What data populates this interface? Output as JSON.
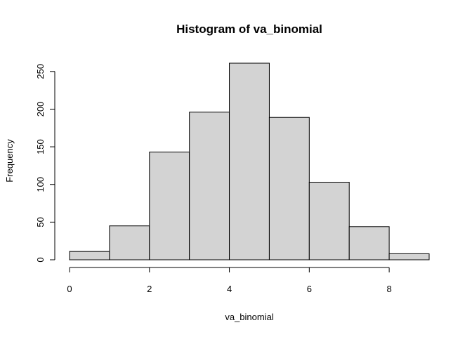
{
  "chart_data": {
    "type": "bar",
    "title": "Histogram of va_binomial",
    "xlabel": "va_binomial",
    "ylabel": "Frequency",
    "bins": [
      {
        "x_start": 0,
        "x_end": 1,
        "count": 11
      },
      {
        "x_start": 1,
        "x_end": 2,
        "count": 45
      },
      {
        "x_start": 2,
        "x_end": 3,
        "count": 143
      },
      {
        "x_start": 3,
        "x_end": 4,
        "count": 196
      },
      {
        "x_start": 4,
        "x_end": 5,
        "count": 261
      },
      {
        "x_start": 5,
        "x_end": 6,
        "count": 189
      },
      {
        "x_start": 6,
        "x_end": 7,
        "count": 103
      },
      {
        "x_start": 7,
        "x_end": 8,
        "count": 44
      },
      {
        "x_start": 8,
        "x_end": 9,
        "count": 8
      }
    ],
    "xlim": [
      0,
      9
    ],
    "ylim": [
      0,
      261
    ],
    "x_ticks": [
      0,
      2,
      4,
      6,
      8
    ],
    "x_tick_labels": [
      "0",
      "2",
      "4",
      "6",
      "8"
    ],
    "y_ticks": [
      0,
      50,
      100,
      150,
      200,
      250
    ],
    "y_tick_labels": [
      "0",
      "50",
      "100",
      "150",
      "200",
      "250"
    ],
    "bar_fill": "#d3d3d3",
    "bar_stroke": "#000000",
    "grid": false,
    "legend": "none"
  }
}
